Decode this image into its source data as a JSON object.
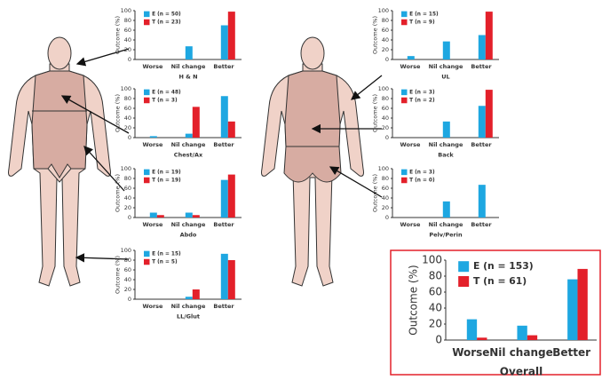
{
  "chart_data": [
    {
      "type": "bar",
      "xlabel": "H & N",
      "ylabel": "Outcome (%)",
      "categories": [
        "Worse",
        "Nil change",
        "Better"
      ],
      "series": [
        {
          "name": "E (n = 50)",
          "color": "#1ea7e1",
          "values": [
            0,
            27,
            70
          ]
        },
        {
          "name": "T (n = 23)",
          "color": "#e3202a",
          "values": [
            0,
            0,
            98
          ]
        }
      ],
      "ylim": [
        0,
        100
      ],
      "yticks": [
        0,
        20,
        40,
        60,
        80,
        100
      ]
    },
    {
      "type": "bar",
      "xlabel": "Chest/Ax",
      "ylabel": "Outcome (%)",
      "categories": [
        "Worse",
        "Nil change",
        "Better"
      ],
      "series": [
        {
          "name": "E (n = 48)",
          "color": "#1ea7e1",
          "values": [
            3,
            8,
            85
          ]
        },
        {
          "name": "T (n = 3)",
          "color": "#e3202a",
          "values": [
            0,
            63,
            33
          ]
        }
      ],
      "ylim": [
        0,
        100
      ],
      "yticks": [
        0,
        20,
        40,
        60,
        80,
        100
      ]
    },
    {
      "type": "bar",
      "xlabel": "Abdo",
      "ylabel": "Outcome (%)",
      "categories": [
        "Worse",
        "Nil change",
        "Better"
      ],
      "series": [
        {
          "name": "E (n = 19)",
          "color": "#1ea7e1",
          "values": [
            10,
            10,
            77
          ]
        },
        {
          "name": "T (n = 19)",
          "color": "#e3202a",
          "values": [
            5,
            5,
            88
          ]
        }
      ],
      "ylim": [
        0,
        100
      ],
      "yticks": [
        0,
        20,
        40,
        60,
        80,
        100
      ]
    },
    {
      "type": "bar",
      "xlabel": "LL/Glut",
      "ylabel": "Outcome (%)",
      "categories": [
        "Worse",
        "Nil change",
        "Better"
      ],
      "series": [
        {
          "name": "E (n = 15)",
          "color": "#1ea7e1",
          "values": [
            0,
            5,
            93
          ]
        },
        {
          "name": "T (n = 5)",
          "color": "#e3202a",
          "values": [
            0,
            20,
            80
          ]
        }
      ],
      "ylim": [
        0,
        100
      ],
      "yticks": [
        0,
        20,
        40,
        60,
        80,
        100
      ]
    },
    {
      "type": "bar",
      "xlabel": "UL",
      "ylabel": "Outcome (%)",
      "categories": [
        "Worse",
        "Nil change",
        "Better"
      ],
      "series": [
        {
          "name": "E (n = 15)",
          "color": "#1ea7e1",
          "values": [
            7,
            37,
            50
          ]
        },
        {
          "name": "T (n = 9)",
          "color": "#e3202a",
          "values": [
            0,
            0,
            98
          ]
        }
      ],
      "ylim": [
        0,
        100
      ],
      "yticks": [
        0,
        20,
        40,
        60,
        80,
        100
      ]
    },
    {
      "type": "bar",
      "xlabel": "Back",
      "ylabel": "Outcome (%)",
      "categories": [
        "Worse",
        "Nil change",
        "Better"
      ],
      "series": [
        {
          "name": "E (n = 3)",
          "color": "#1ea7e1",
          "values": [
            0,
            33,
            65
          ]
        },
        {
          "name": "T (n = 2)",
          "color": "#e3202a",
          "values": [
            0,
            0,
            98
          ]
        }
      ],
      "ylim": [
        0,
        100
      ],
      "yticks": [
        0,
        20,
        40,
        60,
        80,
        100
      ]
    },
    {
      "type": "bar",
      "xlabel": "Pelv/Perin",
      "ylabel": "Outcome (%)",
      "categories": [
        "Worse",
        "Nil change",
        "Better"
      ],
      "series": [
        {
          "name": "E (n = 3)",
          "color": "#1ea7e1",
          "values": [
            0,
            33,
            67
          ]
        },
        {
          "name": "T (n = 0)",
          "color": "#e3202a",
          "values": [
            0,
            0,
            0
          ]
        }
      ],
      "ylim": [
        0,
        100
      ],
      "yticks": [
        0,
        20,
        40,
        60,
        80,
        100
      ]
    },
    {
      "type": "bar",
      "xlabel": "Overall",
      "ylabel": "Outcome (%)",
      "categories": [
        "Worse",
        "Nil change",
        "Better"
      ],
      "series": [
        {
          "name": "E (n = 153)",
          "color": "#1ea7e1",
          "values": [
            26,
            18,
            76
          ]
        },
        {
          "name": "T (n = 61)",
          "color": "#e3202a",
          "values": [
            3,
            6,
            89
          ]
        }
      ],
      "ylim": [
        0,
        100
      ],
      "yticks": [
        0,
        20,
        40,
        60,
        80,
        100
      ]
    }
  ]
}
